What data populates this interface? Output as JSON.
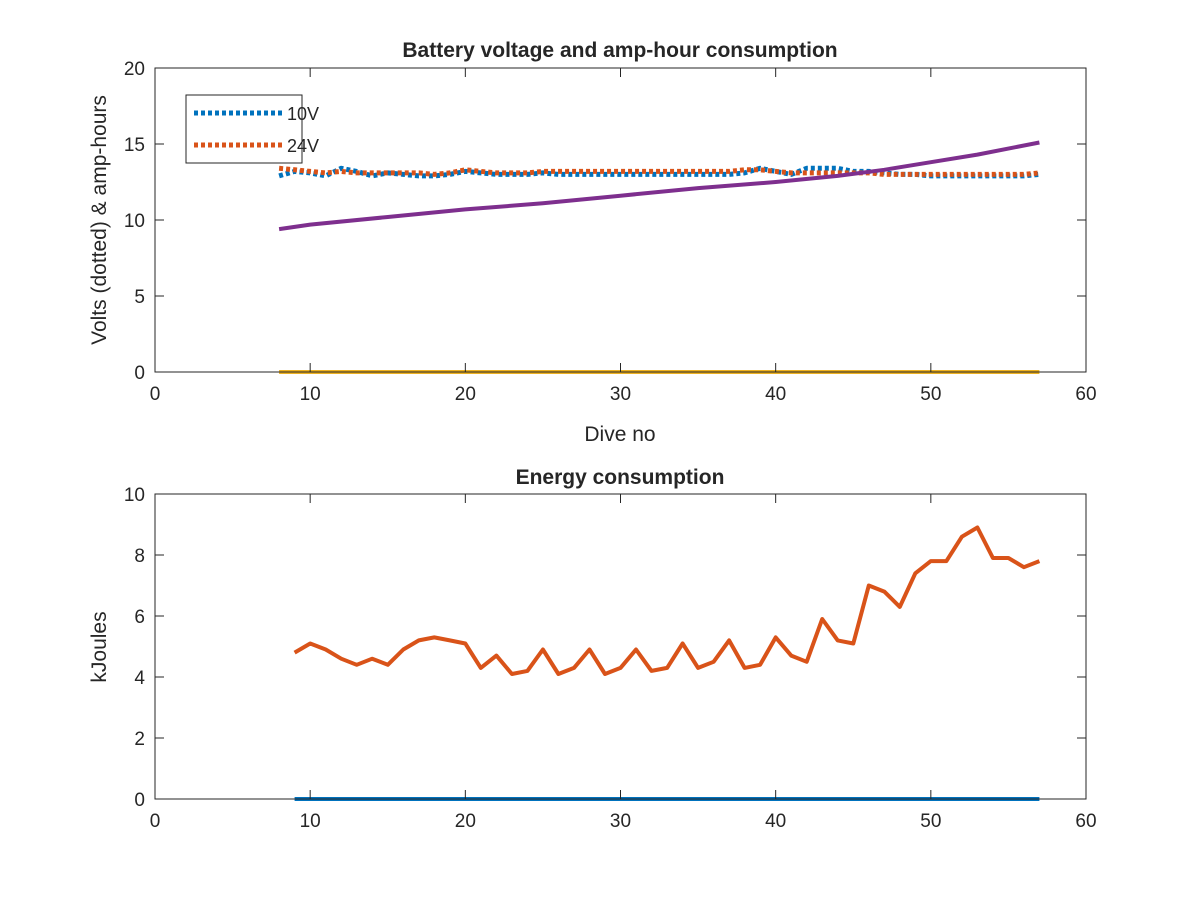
{
  "chart_data": [
    {
      "type": "line",
      "title": "Battery voltage and amp-hour consumption",
      "xlabel": "Dive no",
      "ylabel": "Volts (dotted) & amp-hours",
      "xlim": [
        0,
        60
      ],
      "ylim": [
        0,
        20
      ],
      "xticks": [
        "0",
        "10",
        "20",
        "30",
        "40",
        "50",
        "60"
      ],
      "yticks": [
        "0",
        "5",
        "10",
        "15",
        "20"
      ],
      "grid": false,
      "legend_position": "top-left",
      "series": [
        {
          "name": "10V",
          "style": "dotted",
          "color": "#0072BD",
          "x": [
            8,
            9,
            10,
            11,
            12,
            13,
            14,
            15,
            16,
            17,
            18,
            19,
            20,
            21,
            22,
            23,
            24,
            25,
            26,
            27,
            28,
            29,
            30,
            31,
            32,
            33,
            34,
            35,
            36,
            37,
            38,
            39,
            40,
            41,
            42,
            43,
            44,
            45,
            46,
            47,
            48,
            49,
            50,
            51,
            52,
            53,
            54,
            55,
            56,
            57
          ],
          "y": [
            12.9,
            13.2,
            13.1,
            12.9,
            13.4,
            13.2,
            12.9,
            13.1,
            13.0,
            12.9,
            12.9,
            13.0,
            13.2,
            13.1,
            13.0,
            13.0,
            13.0,
            13.1,
            13.0,
            13.0,
            13.0,
            13.0,
            13.0,
            13.0,
            13.0,
            13.0,
            13.0,
            13.0,
            13.0,
            13.0,
            13.1,
            13.4,
            13.2,
            13.0,
            13.4,
            13.4,
            13.4,
            13.2,
            13.2,
            13.1,
            13.0,
            13.0,
            12.9,
            12.9,
            12.9,
            12.9,
            12.9,
            12.9,
            12.9,
            13.0
          ]
        },
        {
          "name": "24V",
          "style": "dotted",
          "color": "#D95319",
          "x": [
            8,
            9,
            10,
            11,
            12,
            13,
            14,
            15,
            16,
            17,
            18,
            19,
            20,
            21,
            22,
            23,
            24,
            25,
            26,
            27,
            28,
            29,
            30,
            31,
            32,
            33,
            34,
            35,
            36,
            37,
            38,
            39,
            40,
            41,
            42,
            43,
            44,
            45,
            46,
            47,
            48,
            49,
            50,
            51,
            52,
            53,
            54,
            55,
            56,
            57
          ],
          "y": [
            13.4,
            13.3,
            13.2,
            13.1,
            13.2,
            13.1,
            13.1,
            13.1,
            13.1,
            13.1,
            13.0,
            13.1,
            13.3,
            13.2,
            13.1,
            13.1,
            13.1,
            13.2,
            13.2,
            13.2,
            13.2,
            13.2,
            13.2,
            13.2,
            13.2,
            13.2,
            13.2,
            13.2,
            13.2,
            13.2,
            13.3,
            13.3,
            13.2,
            13.1,
            13.1,
            13.1,
            13.1,
            13.1,
            13.1,
            13.0,
            13.0,
            13.0,
            13.0,
            13.0,
            13.0,
            13.0,
            13.0,
            13.0,
            13.0,
            13.1
          ]
        },
        {
          "style": "solid",
          "color": "#7E2F8E",
          "x": [
            8,
            10,
            15,
            20,
            25,
            30,
            35,
            40,
            44,
            47,
            50,
            53,
            57
          ],
          "y": [
            9.4,
            9.7,
            10.2,
            10.7,
            11.1,
            11.6,
            12.1,
            12.5,
            12.9,
            13.3,
            13.8,
            14.3,
            15.1
          ]
        },
        {
          "style": "solid",
          "color": "#EDB120",
          "x": [
            8,
            57
          ],
          "y": [
            0,
            0
          ]
        }
      ]
    },
    {
      "type": "line",
      "title": "Energy consumption",
      "xlabel": "",
      "ylabel": "kJoules",
      "xlim": [
        0,
        60
      ],
      "ylim": [
        0,
        10
      ],
      "xticks": [
        "0",
        "10",
        "20",
        "30",
        "40",
        "50",
        "60"
      ],
      "yticks": [
        "0",
        "2",
        "4",
        "6",
        "8",
        "10"
      ],
      "grid": false,
      "series": [
        {
          "style": "solid",
          "color": "#D95319",
          "x": [
            9,
            10,
            11,
            12,
            13,
            14,
            15,
            16,
            17,
            18,
            19,
            20,
            21,
            22,
            23,
            24,
            25,
            26,
            27,
            28,
            29,
            30,
            31,
            32,
            33,
            34,
            35,
            36,
            37,
            38,
            39,
            40,
            41,
            42,
            43,
            44,
            45,
            46,
            47,
            48,
            49,
            50,
            51,
            52,
            53,
            54,
            55,
            56,
            57
          ],
          "y": [
            4.8,
            5.1,
            4.9,
            4.6,
            4.4,
            4.6,
            4.4,
            4.9,
            5.2,
            5.3,
            5.2,
            5.1,
            4.3,
            4.7,
            4.1,
            4.2,
            4.9,
            4.1,
            4.3,
            4.9,
            4.1,
            4.3,
            4.9,
            4.2,
            4.3,
            5.1,
            4.3,
            4.5,
            5.2,
            4.3,
            4.4,
            5.3,
            4.7,
            4.5,
            5.9,
            5.2,
            5.1,
            7.0,
            6.8,
            6.3,
            7.4,
            7.8,
            7.8,
            8.6,
            8.9,
            7.9,
            7.9,
            7.6,
            7.8
          ]
        },
        {
          "style": "solid",
          "color": "#0072BD",
          "x": [
            9,
            57
          ],
          "y": [
            0,
            0
          ]
        }
      ]
    }
  ]
}
